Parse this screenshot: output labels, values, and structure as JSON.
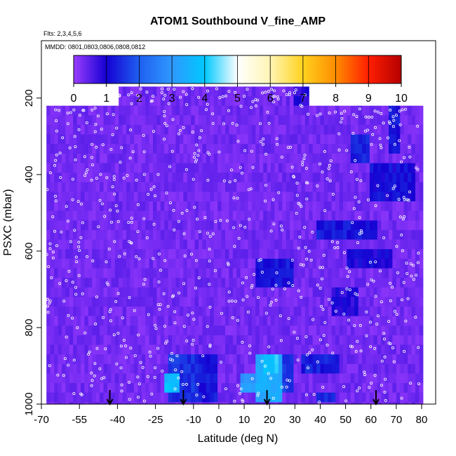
{
  "chart_data": {
    "type": "heatmap",
    "title": "ATOM1 Southbound V_fine_AMP",
    "flights_note": "Flts: 2,3,4,5,6",
    "dates_note": "MMDD: 0801,0803,0806,0808,0812",
    "xlabel": "Latitude (deg N)",
    "ylabel": "PSXC (mbar)",
    "xlim": [
      -70,
      80
    ],
    "ylim": [
      1000,
      50
    ],
    "x_ticks": [
      -70,
      -55,
      -40,
      -25,
      -10,
      0,
      10,
      20,
      30,
      40,
      50,
      60,
      70,
      80
    ],
    "x_tick_labels": [
      "-70",
      "-55",
      "-40",
      "-25",
      "-10",
      "0",
      "10",
      "20",
      "30",
      "40",
      "50",
      "60",
      "70",
      "80"
    ],
    "y_ticks": [
      200,
      400,
      600,
      800,
      1000
    ],
    "y_tick_labels": [
      "200",
      "400",
      "600",
      "800",
      "1000"
    ],
    "colorbar": {
      "range": [
        0,
        10
      ],
      "ticks": [
        0,
        1,
        2,
        3,
        4,
        5,
        6,
        7,
        8,
        9,
        10
      ],
      "tick_labels": [
        "0",
        "1",
        "2",
        "3",
        "4",
        "5",
        "6",
        "7",
        "8",
        "9",
        "10"
      ],
      "stops": [
        {
          "v": 0,
          "c": "#9b3cff"
        },
        {
          "v": 1,
          "c": "#1400d2"
        },
        {
          "v": 2,
          "c": "#1f5ff0"
        },
        {
          "v": 3,
          "c": "#2f98ff"
        },
        {
          "v": 4,
          "c": "#00c8ff"
        },
        {
          "v": 5,
          "c": "#ffffff"
        },
        {
          "v": 6,
          "c": "#fff5b4"
        },
        {
          "v": 7,
          "c": "#ffd21e"
        },
        {
          "v": 8,
          "c": "#ff8c00"
        },
        {
          "v": 9,
          "c": "#ff1e00"
        },
        {
          "v": 10,
          "c": "#b40000"
        }
      ]
    },
    "background_value": 0.3,
    "data_coverage": {
      "lat_start": -68,
      "lat_end": 80,
      "top_pressure_default": 220,
      "top_pressure_segments": [
        {
          "lat_from": -40,
          "lat_to": 35,
          "pressure": 170
        }
      ],
      "bottom_pressure": 1000
    },
    "high_value_regions": [
      {
        "lat": [
          -20,
          -8
        ],
        "p": [
          870,
          1000
        ],
        "value": 1.5
      },
      {
        "lat": [
          -8,
          0
        ],
        "p": [
          870,
          1000
        ],
        "value": 1.2
      },
      {
        "lat": [
          -22,
          -15
        ],
        "p": [
          920,
          960
        ],
        "value": 3.8
      },
      {
        "lat": [
          8,
          25
        ],
        "p": [
          930,
          960
        ],
        "value": 3.0
      },
      {
        "lat": [
          15,
          25
        ],
        "p": [
          880,
          1000
        ],
        "value": 3.4
      },
      {
        "lat": [
          18,
          23
        ],
        "p": [
          880,
          930
        ],
        "value": 4.0
      },
      {
        "lat": [
          25,
          30
        ],
        "p": [
          870,
          980
        ],
        "value": 1.6
      },
      {
        "lat": [
          32,
          47
        ],
        "p": [
          870,
          930
        ],
        "value": 1.3
      },
      {
        "lat": [
          38,
          46
        ],
        "p": [
          970,
          1000
        ],
        "value": 1.4
      },
      {
        "lat": [
          15,
          30
        ],
        "p": [
          630,
          690
        ],
        "value": 1.2
      },
      {
        "lat": [
          38,
          62
        ],
        "p": [
          530,
          580
        ],
        "value": 1.2
      },
      {
        "lat": [
          50,
          68
        ],
        "p": [
          600,
          640
        ],
        "value": 1.0
      },
      {
        "lat": [
          60,
          78
        ],
        "p": [
          380,
          460
        ],
        "value": 1.1
      },
      {
        "lat": [
          52,
          60
        ],
        "p": [
          300,
          380
        ],
        "value": 1.3
      },
      {
        "lat": [
          67,
          72
        ],
        "p": [
          220,
          340
        ],
        "value": 1.2
      },
      {
        "lat": [
          30,
          35
        ],
        "p": [
          170,
          220
        ],
        "value": 0.9
      },
      {
        "lat": [
          45,
          55
        ],
        "p": [
          700,
          760
        ],
        "value": 0.9
      }
    ],
    "arrow_latitudes": [
      -43,
      -14,
      19,
      62
    ]
  }
}
